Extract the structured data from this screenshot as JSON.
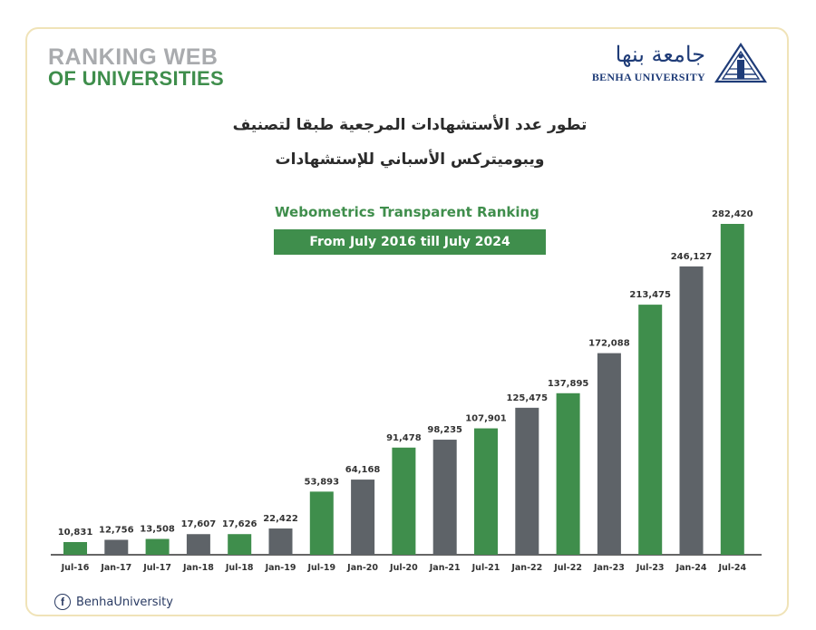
{
  "header": {
    "ranking_logo_line1": "RANKING WEB",
    "ranking_logo_line2": "OF UNIVERSITIES",
    "university_name_ar": "جامعة بنها",
    "university_name_en": "BENHA UNIVERSITY"
  },
  "title_ar_line1": "تطور عدد الأستشهادات المرجعية طبقا لتصنيف",
  "title_ar_line2": "ويبوميتركس الأسباني للإستشهادات",
  "footer": {
    "facebook_handle": "BenhaUniversity"
  },
  "colors": {
    "green": "#3f8e4c",
    "gray": "#5e6368",
    "text_dark": "#333333"
  },
  "chart_data": {
    "type": "bar",
    "title": "Webometrics Transparent Ranking",
    "subtitle": "From July 2016 till July 2024",
    "categories": [
      "Jul-16",
      "Jan-17",
      "Jul-17",
      "Jan-18",
      "Jul-18",
      "Jan-19",
      "Jul-19",
      "Jan-20",
      "Jul-20",
      "Jan-21",
      "Jul-21",
      "Jan-22",
      "Jul-22",
      "Jan-23",
      "Jul-23",
      "Jan-24",
      "Jul-24"
    ],
    "values": [
      10831,
      12756,
      13508,
      17607,
      17626,
      22422,
      53893,
      64168,
      91478,
      98235,
      107901,
      125475,
      137895,
      172088,
      213475,
      246127,
      282420
    ],
    "value_labels": [
      "10,831",
      "12,756",
      "13,508",
      "17,607",
      "17,626",
      "22,422",
      "53,893",
      "64,168",
      "91,478",
      "98,235",
      "107,901",
      "125,475",
      "137,895",
      "172,088",
      "213,475",
      "246,127",
      "282,420"
    ],
    "bar_colors": [
      "#3f8e4c",
      "#5e6368",
      "#3f8e4c",
      "#5e6368",
      "#3f8e4c",
      "#5e6368",
      "#3f8e4c",
      "#5e6368",
      "#3f8e4c",
      "#5e6368",
      "#3f8e4c",
      "#5e6368",
      "#3f8e4c",
      "#5e6368",
      "#3f8e4c",
      "#5e6368",
      "#3f8e4c"
    ],
    "xlabel": "",
    "ylabel": "",
    "ylim": [
      0,
      282420
    ],
    "grid": false,
    "legend": "none"
  }
}
